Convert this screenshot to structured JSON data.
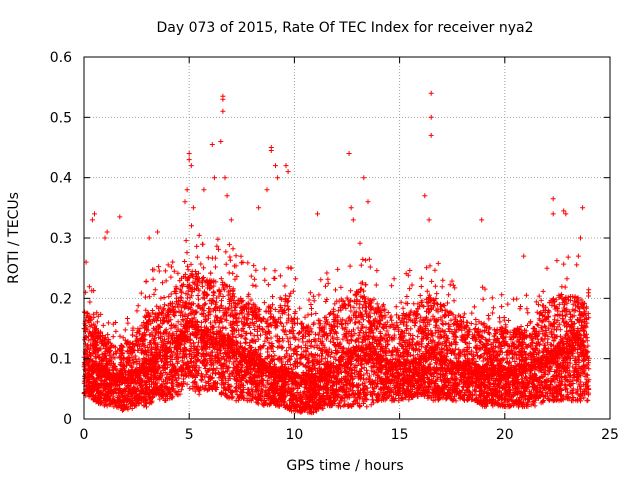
{
  "chart_data": {
    "type": "scatter",
    "title": "Day 073 of 2015, Rate Of TEC Index for receiver nya2",
    "xlabel": "GPS time / hours",
    "ylabel": "ROTI / TECUs",
    "xlim": [
      0,
      25
    ],
    "ylim": [
      0,
      0.6
    ],
    "xticks": [
      0,
      5,
      10,
      15,
      20,
      25
    ],
    "yticks": [
      0,
      0.1,
      0.2,
      0.3,
      0.4,
      0.5,
      0.6
    ],
    "xtick_labels": [
      "0",
      "5",
      "10",
      "15",
      "20",
      "25"
    ],
    "ytick_labels": [
      "0",
      "0.1",
      "0.2",
      "0.3",
      "0.4",
      "0.5",
      "0.6"
    ],
    "grid": true,
    "marker": "+",
    "color": "#ff0000",
    "x_range_of_points": [
      0,
      24
    ],
    "series": [
      {
        "name": "ROTI",
        "envelope": {
          "x": [
            0,
            0.5,
            1,
            1.5,
            2,
            2.5,
            3,
            3.5,
            4,
            4.5,
            5,
            5.5,
            6,
            6.5,
            7,
            7.5,
            8,
            8.5,
            9,
            9.5,
            10,
            10.5,
            11,
            11.5,
            12,
            12.5,
            13,
            13.5,
            14,
            14.5,
            15,
            15.5,
            16,
            16.5,
            17,
            17.5,
            18,
            18.5,
            19,
            19.5,
            20,
            20.5,
            21,
            21.5,
            22,
            22.5,
            23,
            23.5,
            24
          ],
          "low": [
            0.04,
            0.03,
            0.02,
            0.02,
            0.01,
            0.02,
            0.02,
            0.03,
            0.03,
            0.04,
            0.05,
            0.04,
            0.05,
            0.04,
            0.03,
            0.03,
            0.03,
            0.02,
            0.02,
            0.02,
            0.01,
            0.01,
            0.01,
            0.02,
            0.02,
            0.02,
            0.02,
            0.02,
            0.03,
            0.03,
            0.03,
            0.03,
            0.04,
            0.03,
            0.03,
            0.03,
            0.03,
            0.03,
            0.02,
            0.02,
            0.02,
            0.02,
            0.02,
            0.02,
            0.03,
            0.03,
            0.03,
            0.03,
            0.03
          ],
          "median": [
            0.09,
            0.08,
            0.07,
            0.06,
            0.06,
            0.07,
            0.08,
            0.09,
            0.1,
            0.12,
            0.14,
            0.13,
            0.12,
            0.12,
            0.11,
            0.1,
            0.09,
            0.08,
            0.07,
            0.07,
            0.06,
            0.06,
            0.06,
            0.07,
            0.08,
            0.09,
            0.1,
            0.1,
            0.09,
            0.08,
            0.08,
            0.08,
            0.09,
            0.1,
            0.09,
            0.08,
            0.08,
            0.08,
            0.07,
            0.07,
            0.07,
            0.07,
            0.08,
            0.08,
            0.09,
            0.1,
            0.11,
            0.12,
            0.09
          ],
          "high": [
            0.26,
            0.21,
            0.18,
            0.16,
            0.17,
            0.2,
            0.24,
            0.26,
            0.27,
            0.3,
            0.34,
            0.31,
            0.3,
            0.31,
            0.29,
            0.27,
            0.26,
            0.25,
            0.27,
            0.3,
            0.26,
            0.22,
            0.23,
            0.25,
            0.27,
            0.29,
            0.3,
            0.28,
            0.26,
            0.24,
            0.24,
            0.25,
            0.27,
            0.28,
            0.26,
            0.24,
            0.23,
            0.22,
            0.22,
            0.2,
            0.21,
            0.2,
            0.21,
            0.23,
            0.26,
            0.28,
            0.27,
            0.26,
            0.25
          ]
        },
        "outliers": [
          {
            "x": 0.1,
            "y": 0.26
          },
          {
            "x": 0.4,
            "y": 0.33
          },
          {
            "x": 0.5,
            "y": 0.34
          },
          {
            "x": 1.0,
            "y": 0.3
          },
          {
            "x": 1.1,
            "y": 0.31
          },
          {
            "x": 1.7,
            "y": 0.335
          },
          {
            "x": 3.1,
            "y": 0.3
          },
          {
            "x": 3.5,
            "y": 0.31
          },
          {
            "x": 4.8,
            "y": 0.36
          },
          {
            "x": 4.9,
            "y": 0.38
          },
          {
            "x": 5.0,
            "y": 0.44
          },
          {
            "x": 5.0,
            "y": 0.43
          },
          {
            "x": 5.1,
            "y": 0.42
          },
          {
            "x": 5.2,
            "y": 0.35
          },
          {
            "x": 5.7,
            "y": 0.38
          },
          {
            "x": 6.1,
            "y": 0.455
          },
          {
            "x": 6.2,
            "y": 0.4
          },
          {
            "x": 6.5,
            "y": 0.46
          },
          {
            "x": 6.6,
            "y": 0.535
          },
          {
            "x": 6.6,
            "y": 0.53
          },
          {
            "x": 6.6,
            "y": 0.51
          },
          {
            "x": 6.7,
            "y": 0.4
          },
          {
            "x": 6.8,
            "y": 0.37
          },
          {
            "x": 7.0,
            "y": 0.33
          },
          {
            "x": 8.3,
            "y": 0.35
          },
          {
            "x": 8.7,
            "y": 0.38
          },
          {
            "x": 8.9,
            "y": 0.45
          },
          {
            "x": 8.9,
            "y": 0.445
          },
          {
            "x": 9.1,
            "y": 0.42
          },
          {
            "x": 9.2,
            "y": 0.4
          },
          {
            "x": 9.6,
            "y": 0.42
          },
          {
            "x": 9.7,
            "y": 0.41
          },
          {
            "x": 11.1,
            "y": 0.34
          },
          {
            "x": 12.6,
            "y": 0.44
          },
          {
            "x": 12.7,
            "y": 0.35
          },
          {
            "x": 12.8,
            "y": 0.33
          },
          {
            "x": 13.3,
            "y": 0.4
          },
          {
            "x": 13.5,
            "y": 0.36
          },
          {
            "x": 16.2,
            "y": 0.37
          },
          {
            "x": 16.5,
            "y": 0.54
          },
          {
            "x": 16.5,
            "y": 0.5
          },
          {
            "x": 16.5,
            "y": 0.47
          },
          {
            "x": 16.4,
            "y": 0.33
          },
          {
            "x": 18.9,
            "y": 0.33
          },
          {
            "x": 20.9,
            "y": 0.27
          },
          {
            "x": 22.3,
            "y": 0.365
          },
          {
            "x": 22.3,
            "y": 0.34
          },
          {
            "x": 22.8,
            "y": 0.345
          },
          {
            "x": 22.9,
            "y": 0.34
          },
          {
            "x": 23.7,
            "y": 0.35
          },
          {
            "x": 23.6,
            "y": 0.3
          },
          {
            "x": 23.5,
            "y": 0.27
          }
        ]
      }
    ]
  }
}
